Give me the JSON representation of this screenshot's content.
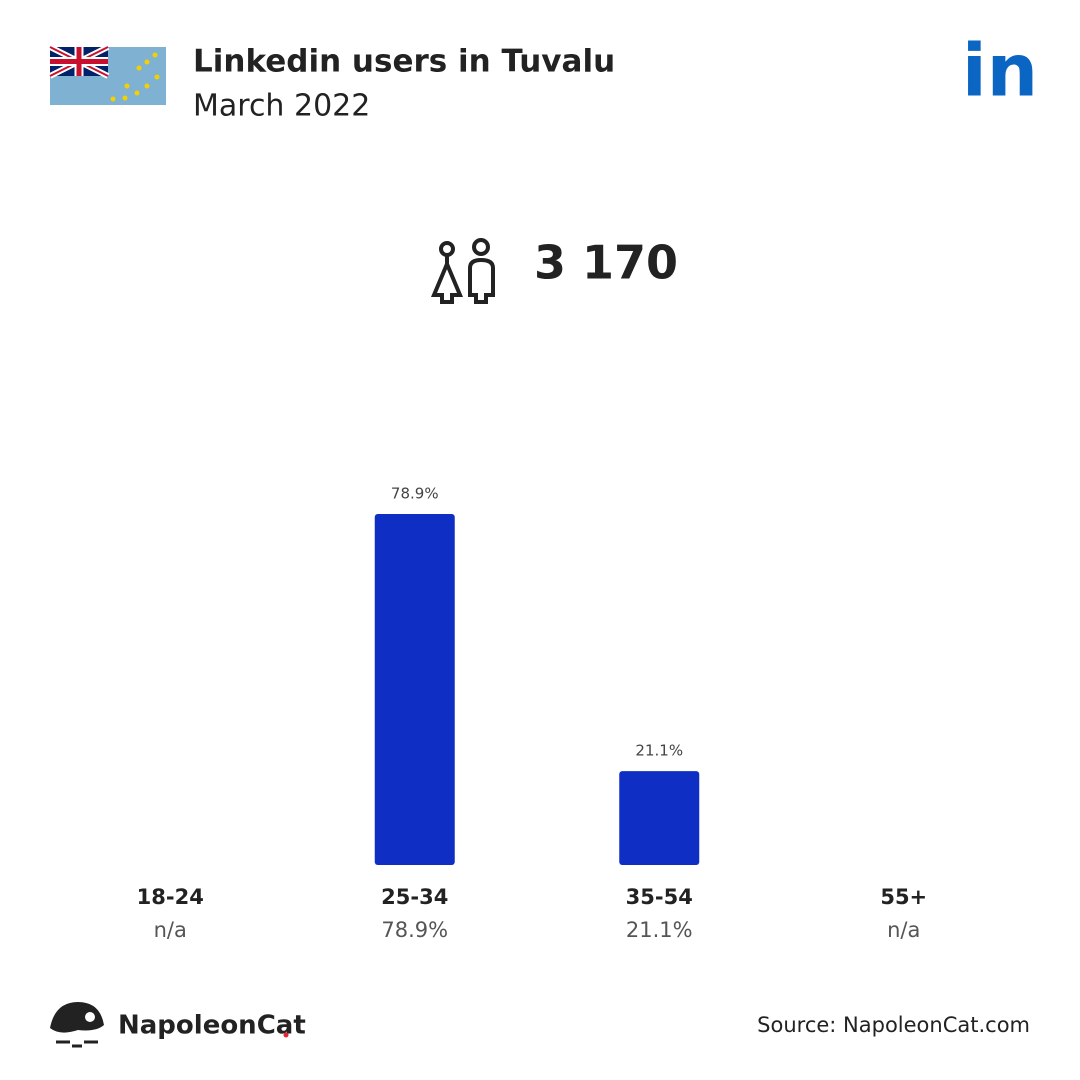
{
  "chart_data": {
    "type": "bar",
    "title": "Linkedin users in Tuvalu",
    "subtitle": "March 2022",
    "logo": "in",
    "total": {
      "value": 3170,
      "label": "3 170"
    },
    "categories": [
      "18-24",
      "25-34",
      "35-54",
      "55+"
    ],
    "values": [
      null,
      78.9,
      21.1,
      null
    ],
    "value_labels": [
      "n/a",
      "78.9%",
      "21.1%",
      "n/a"
    ],
    "color": "#0f2ec4",
    "brand": "NapoleonCat",
    "source": "Source: NapoleonCat.com"
  }
}
